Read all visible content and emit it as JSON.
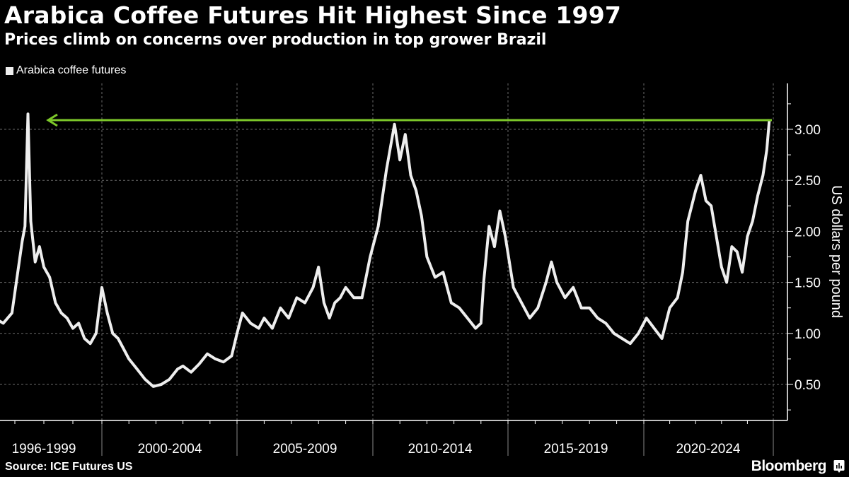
{
  "header": {
    "title": "Arabica Coffee Futures Hit Highest Since 1997",
    "subtitle": "Prices climb on concerns over production in top grower Brazil"
  },
  "legend": {
    "items": [
      {
        "label": "Arabica coffee futures",
        "color": "#eeeeee"
      }
    ]
  },
  "footer": {
    "source": "Source: ICE Futures US",
    "brand": "Bloomberg",
    "brand_icon": "bloomberg-chart-icon"
  },
  "colors": {
    "background": "#000000",
    "line": "#eeeeee",
    "annotation": "#7dc82a",
    "grid": "#666666"
  },
  "chart_data": {
    "type": "line",
    "title": "Arabica Coffee Futures Hit Highest Since 1997",
    "subtitle": "Prices climb on concerns over production in top grower Brazil",
    "xlabel": "",
    "ylabel": "US dollars per pound",
    "ylim": [
      0.2,
      3.35
    ],
    "yticks": [
      0.5,
      1.0,
      1.5,
      2.0,
      2.5,
      3.0
    ],
    "ytick_labels": [
      "0.50",
      "1.00",
      "1.50",
      "2.00",
      "2.50",
      "3.00"
    ],
    "xtick_labels": [
      "1996-1999",
      "2000-2004",
      "2005-2009",
      "2010-2014",
      "2015-2019",
      "2020-2024"
    ],
    "grid": true,
    "legend_position": "top-left",
    "series": [
      {
        "name": "Arabica coffee futures",
        "x": [
          1996.0,
          1996.3,
          1996.6,
          1996.9,
          1997.1,
          1997.25,
          1997.35,
          1997.45,
          1997.55,
          1997.7,
          1997.85,
          1998.0,
          1998.2,
          1998.4,
          1998.6,
          1998.8,
          1999.0,
          1999.2,
          1999.4,
          1999.6,
          1999.8,
          2000.0,
          2000.2,
          2000.4,
          2000.6,
          2000.8,
          2001.0,
          2001.3,
          2001.6,
          2001.9,
          2002.2,
          2002.5,
          2002.8,
          2003.0,
          2003.3,
          2003.6,
          2003.9,
          2004.2,
          2004.5,
          2004.8,
          2005.0,
          2005.2,
          2005.5,
          2005.8,
          2006.0,
          2006.3,
          2006.6,
          2006.9,
          2007.2,
          2007.5,
          2007.8,
          2008.0,
          2008.2,
          2008.4,
          2008.6,
          2008.8,
          2009.0,
          2009.3,
          2009.6,
          2009.9,
          2010.2,
          2010.5,
          2010.8,
          2011.0,
          2011.2,
          2011.4,
          2011.6,
          2011.8,
          2012.0,
          2012.3,
          2012.6,
          2012.9,
          2013.2,
          2013.5,
          2013.8,
          2014.0,
          2014.1,
          2014.3,
          2014.5,
          2014.7,
          2014.9,
          2015.2,
          2015.5,
          2015.8,
          2016.1,
          2016.4,
          2016.6,
          2016.8,
          2017.1,
          2017.4,
          2017.7,
          2018.0,
          2018.3,
          2018.6,
          2018.9,
          2019.2,
          2019.5,
          2019.8,
          2020.1,
          2020.4,
          2020.7,
          2021.0,
          2021.3,
          2021.5,
          2021.7,
          2022.0,
          2022.2,
          2022.4,
          2022.6,
          2022.8,
          2023.0,
          2023.2,
          2023.4,
          2023.6,
          2023.8,
          2024.0,
          2024.2,
          2024.4,
          2024.6,
          2024.75,
          2024.85
        ],
        "values": [
          1.25,
          1.15,
          1.1,
          1.2,
          1.6,
          1.9,
          2.05,
          3.15,
          2.1,
          1.7,
          1.85,
          1.65,
          1.55,
          1.3,
          1.2,
          1.15,
          1.05,
          1.1,
          0.95,
          0.9,
          1.0,
          1.45,
          1.2,
          1.0,
          0.95,
          0.85,
          0.75,
          0.65,
          0.55,
          0.48,
          0.5,
          0.55,
          0.65,
          0.68,
          0.62,
          0.7,
          0.8,
          0.75,
          0.72,
          0.78,
          1.0,
          1.2,
          1.1,
          1.05,
          1.15,
          1.05,
          1.25,
          1.15,
          1.35,
          1.3,
          1.45,
          1.65,
          1.3,
          1.15,
          1.3,
          1.35,
          1.45,
          1.35,
          1.35,
          1.75,
          2.05,
          2.6,
          3.05,
          2.7,
          2.95,
          2.55,
          2.4,
          2.15,
          1.75,
          1.55,
          1.6,
          1.3,
          1.25,
          1.15,
          1.05,
          1.1,
          1.5,
          2.05,
          1.85,
          2.2,
          1.95,
          1.45,
          1.3,
          1.15,
          1.25,
          1.5,
          1.7,
          1.5,
          1.35,
          1.45,
          1.25,
          1.25,
          1.15,
          1.1,
          1.0,
          0.95,
          0.9,
          1.0,
          1.15,
          1.05,
          0.95,
          1.25,
          1.35,
          1.6,
          2.1,
          2.4,
          2.55,
          2.3,
          2.25,
          1.95,
          1.65,
          1.5,
          1.85,
          1.8,
          1.6,
          1.95,
          2.1,
          2.35,
          2.55,
          2.8,
          3.1
        ],
        "color": "#eeeeee"
      }
    ],
    "annotations": [
      {
        "type": "arrow",
        "from_x": 2024.85,
        "to_x": 1997.5,
        "y": 3.1,
        "color": "#7dc82a",
        "text": ""
      }
    ]
  }
}
